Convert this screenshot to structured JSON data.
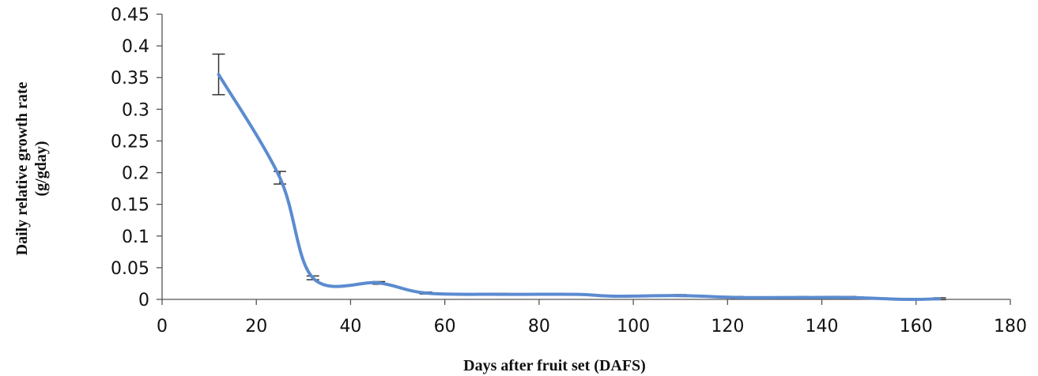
{
  "chart_data": {
    "type": "line",
    "title": "",
    "xlabel": "Days after fruit set (DAFS)",
    "ylabel_lines": [
      "Daily relative growth rate",
      "(g/gday)"
    ],
    "xlim": [
      0,
      180
    ],
    "ylim": [
      0,
      0.45
    ],
    "x_ticks": [
      0,
      20,
      40,
      60,
      80,
      100,
      120,
      140,
      160,
      180
    ],
    "x_tick_labels": [
      "0",
      "20",
      "40",
      "60",
      "80",
      "100",
      "120",
      "140",
      "160",
      "180"
    ],
    "y_ticks": [
      0,
      0.05,
      0.1,
      0.15,
      0.2,
      0.25,
      0.3,
      0.35,
      0.4,
      0.45
    ],
    "y_tick_labels": [
      "0",
      "0.05",
      "0.1",
      "0.15",
      "0.2",
      "0.25",
      "0.3",
      "0.35",
      "0.4",
      "0.45"
    ],
    "grid": false,
    "legend": "none",
    "series": [
      {
        "color": "#5b8bd0",
        "smoothed": true,
        "x": [
          12,
          25,
          32,
          46,
          56,
          72,
          88,
          96,
          110,
          122,
          136,
          146,
          158,
          165
        ],
        "y": [
          0.355,
          0.192,
          0.034,
          0.026,
          0.01,
          0.008,
          0.008,
          0.005,
          0.006,
          0.003,
          0.003,
          0.003,
          0.0,
          0.001
        ],
        "error": [
          0.032,
          0.01,
          0.003,
          0.002,
          0.0015,
          0.0015,
          0,
          0,
          0.0015,
          0.0015,
          0.0015,
          0.0015,
          0,
          0.0015
        ]
      }
    ]
  }
}
